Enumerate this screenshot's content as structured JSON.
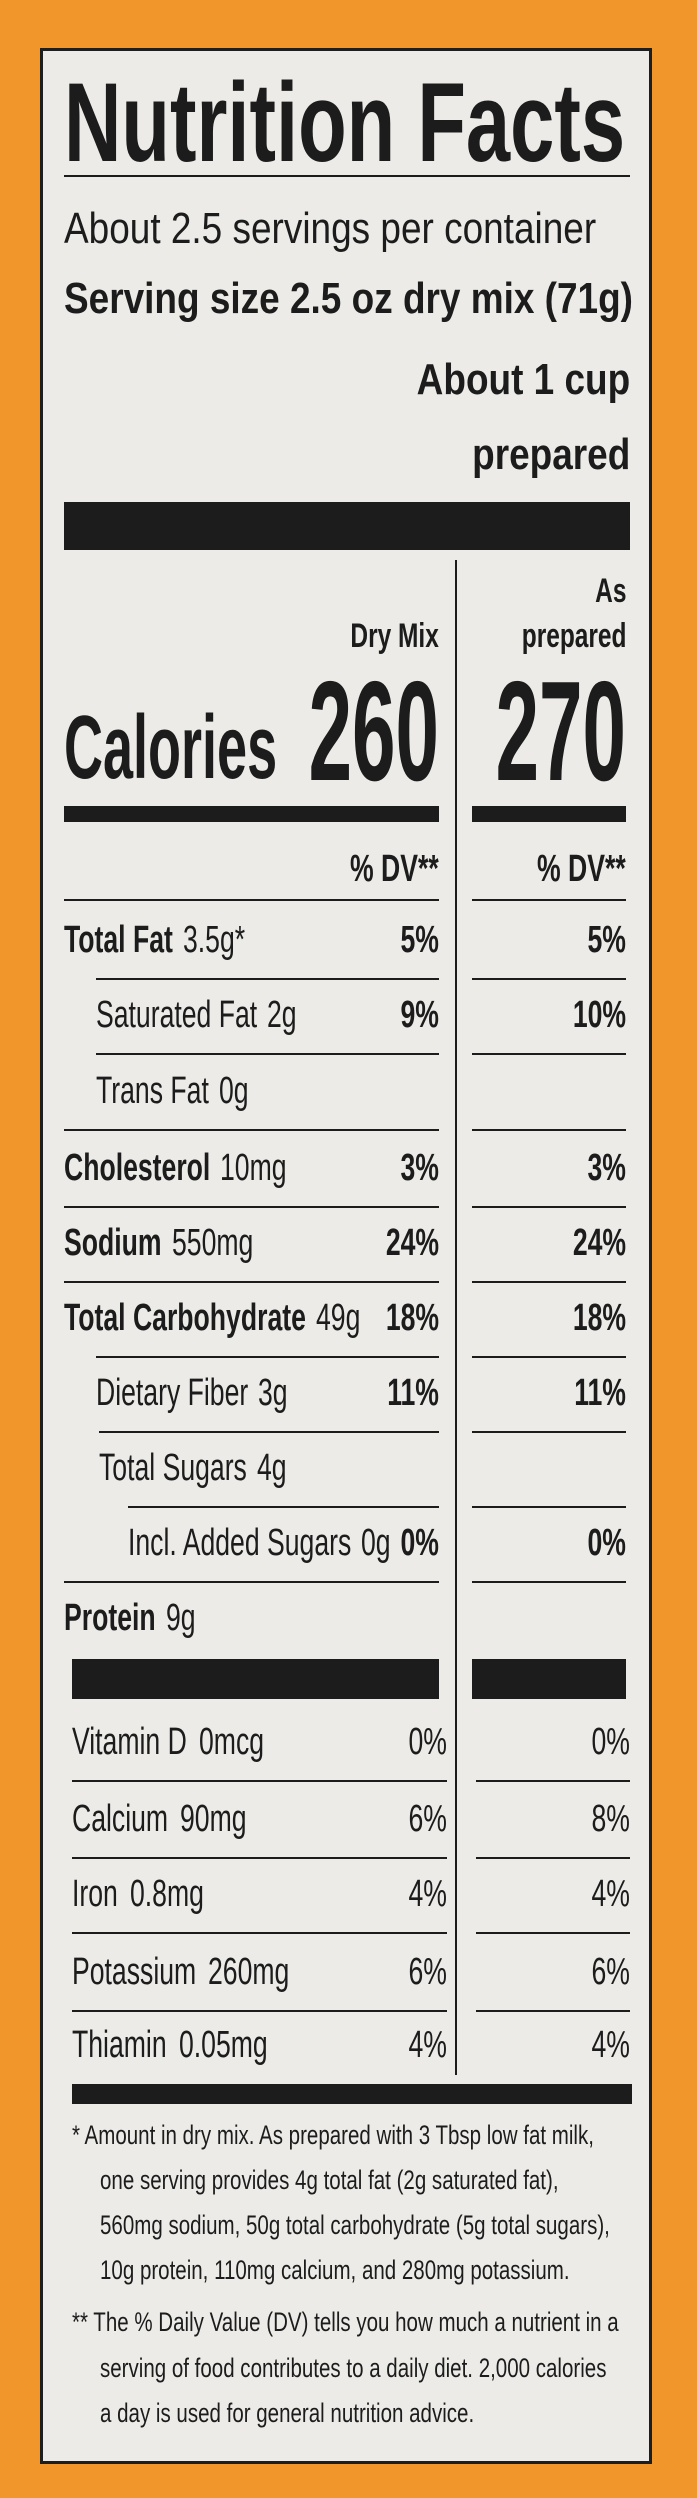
{
  "title": "Nutrition Facts",
  "servings_per_container": "About 2.5 servings per container",
  "serving_size": "Serving size 2.5 oz dry mix (71g)",
  "serving_size_prepared": [
    "About 1 cup",
    "prepared"
  ],
  "columns": {
    "dry": "Dry Mix",
    "prepared": [
      "As",
      "prepared"
    ]
  },
  "calories": {
    "label": "Calories",
    "dry": "260",
    "prepared": "270"
  },
  "dv_header": {
    "dry": "% DV**",
    "prepared": "% DV**"
  },
  "nutrients": [
    {
      "name": "Total Fat",
      "amount": "3.5g*",
      "dv_dry": "5%",
      "dv_prepared": "5%"
    },
    {
      "name": "Saturated Fat",
      "amount": "2g",
      "dv_dry": "9%",
      "dv_prepared": "10%"
    },
    {
      "name": "Trans Fat",
      "amount": "0g"
    },
    {
      "name": "Cholesterol",
      "amount": "10mg",
      "dv_dry": "3%",
      "dv_prepared": "3%"
    },
    {
      "name": "Sodium",
      "amount": "550mg",
      "dv_dry": "24%",
      "dv_prepared": "24%"
    },
    {
      "name": "Total Carbohydrate",
      "amount": "49g",
      "dv_dry": "18%",
      "dv_prepared": "18%"
    },
    {
      "name": "Dietary Fiber",
      "amount": "3g",
      "dv_dry": "11%",
      "dv_prepared": "11%"
    },
    {
      "name": "Total Sugars",
      "amount": "4g"
    },
    {
      "name": "Incl. Added Sugars",
      "amount": "0g",
      "dv_dry": "0%",
      "dv_prepared": "0%"
    },
    {
      "name": "Protein",
      "amount": "9g"
    }
  ],
  "vitamins": [
    {
      "name": "Vitamin D",
      "amount": "0mcg",
      "dv_dry": "0%",
      "dv_prepared": "0%"
    },
    {
      "name": "Calcium",
      "amount": "90mg",
      "dv_dry": "6%",
      "dv_prepared": "8%"
    },
    {
      "name": "Iron",
      "amount": "0.8mg",
      "dv_dry": "4%",
      "dv_prepared": "4%"
    },
    {
      "name": "Potassium",
      "amount": "260mg",
      "dv_dry": "6%",
      "dv_prepared": "6%"
    },
    {
      "name": "Thiamin",
      "amount": "0.05mg",
      "dv_dry": "4%",
      "dv_prepared": "4%"
    }
  ],
  "footnotes": [
    [
      "* Amount in dry mix. As prepared with 3 Tbsp low fat milk,",
      "one serving provides 4g total fat (2g saturated fat),",
      "560mg sodium, 50g total carbohydrate (5g total sugars),",
      "10g protein, 110mg calcium, and 280mg potassium."
    ],
    [
      "** The % Daily Value (DV) tells you how much a nutrient in a",
      "serving of food contributes to a daily diet. 2,000 calories",
      "a day is used for general nutrition advice."
    ]
  ]
}
